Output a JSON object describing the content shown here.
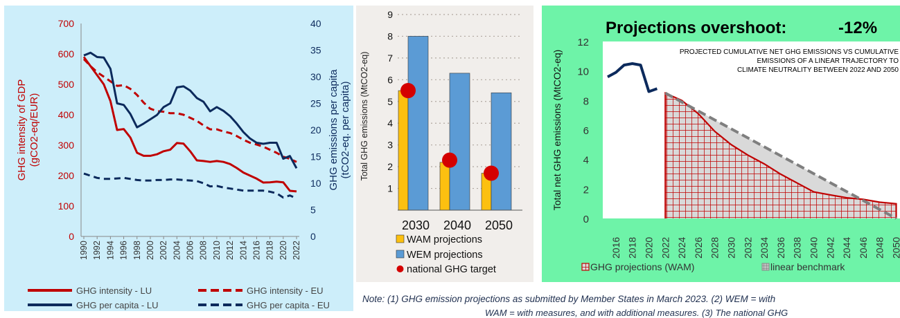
{
  "charts": {
    "intensity": {
      "left_axis_label_line1": "GHG intensity of GDP",
      "left_axis_label_line2": "(gCO2-eq/EUR)",
      "right_axis_label_line1": "GHG emissions per capita",
      "right_axis_label_line2": "(tCO2-eq. per capita)",
      "legend": [
        "GHG intensity - LU",
        "GHG intensity - EU",
        "GHG per capita - LU",
        "GHG per capita - EU"
      ]
    },
    "projections": {
      "ylabel": "Total GHG emissions (MtCO2-eq)",
      "legend": [
        "WAM projections",
        "WEM projections",
        "national GHG target"
      ]
    },
    "overshoot": {
      "title": "Projections overshoot:",
      "value": "-12%",
      "inset_line1": "PROJECTED CUMULATIVE NET GHG EMISSIONS VS CUMULATIVE",
      "inset_line2": "EMISSIONS OF A LINEAR TRAJECTORY TO",
      "inset_line3": "CLIMATE NEUTRALITY BETWEEN 2022 AND 2050",
      "ylabel": "Total net GHG emissions  (MtCO2-eq)",
      "legend": [
        "GHG projections (WAM)",
        "linear benchmark"
      ]
    }
  },
  "note": {
    "line1": "Note: (1) GHG emission projections as submitted by Member States in March 2023. (2) WEM = with",
    "line2": "WAM = with measures, and with additional measures. (3) The national GHG"
  },
  "colors": {
    "lu_red": "#c00000",
    "eu_navy": "#0c2a5c",
    "wam": "#fcc010",
    "wem": "#5b9bd5",
    "target": "#d40000",
    "panel1_bg": "#cdeefa",
    "panel2_bg": "#f1eeeb",
    "panel3_bg": "#6ef3a8"
  },
  "chart_data": [
    {
      "type": "line",
      "x": [
        1990,
        1991,
        1992,
        1993,
        1994,
        1995,
        1996,
        1997,
        1998,
        1999,
        2000,
        2001,
        2002,
        2003,
        2004,
        2005,
        2006,
        2007,
        2008,
        2009,
        2010,
        2011,
        2012,
        2013,
        2014,
        2015,
        2016,
        2017,
        2018,
        2019,
        2020,
        2021,
        2022
      ],
      "x_ticks": [
        "1990",
        "1992",
        "1994",
        "1996",
        "1998",
        "2000",
        "2002",
        "2004",
        "2006",
        "2008",
        "2010",
        "2012",
        "2014",
        "2016",
        "2018",
        "2020",
        "2022"
      ],
      "ylim": [
        0,
        700
      ],
      "y_ticks": [
        "0",
        "100",
        "200",
        "300",
        "400",
        "500",
        "600",
        "700"
      ],
      "y2lim": [
        0,
        40
      ],
      "y2_ticks": [
        "0",
        "5",
        "10",
        "15",
        "20",
        "25",
        "30",
        "35",
        "40"
      ],
      "series": [
        {
          "name": "GHG intensity - LU",
          "axis": "left",
          "style": "solid",
          "color": "#c00000",
          "values": [
            590,
            560,
            530,
            500,
            445,
            350,
            353,
            325,
            275,
            265,
            265,
            270,
            280,
            285,
            307,
            305,
            280,
            250,
            248,
            245,
            248,
            245,
            238,
            225,
            210,
            200,
            190,
            177,
            178,
            180,
            178,
            150,
            148
          ]
        },
        {
          "name": "GHG intensity - EU",
          "axis": "left",
          "style": "dashed",
          "color": "#c00000",
          "values": [
            583,
            560,
            540,
            525,
            510,
            495,
            497,
            485,
            465,
            440,
            420,
            412,
            410,
            405,
            405,
            400,
            390,
            380,
            365,
            352,
            352,
            345,
            340,
            330,
            318,
            308,
            302,
            295,
            285,
            275,
            262,
            255,
            245
          ]
        },
        {
          "name": "GHG per capita - LU",
          "axis": "right",
          "style": "solid",
          "color": "#0c2a5c",
          "values": [
            34.0,
            34.5,
            33.7,
            33.6,
            31.5,
            25.0,
            24.7,
            23.0,
            20.5,
            21.2,
            22.0,
            22.8,
            24.3,
            25.0,
            28.0,
            28.2,
            27.4,
            26.0,
            25.3,
            23.5,
            24.3,
            23.6,
            22.6,
            21.2,
            19.6,
            18.4,
            17.6,
            17.4,
            17.6,
            17.6,
            14.6,
            15.1,
            12.8
          ]
        },
        {
          "name": "GHG per capita - EU",
          "axis": "right",
          "style": "dashed",
          "color": "#0c2a5c",
          "values": [
            11.8,
            11.4,
            11.0,
            10.8,
            10.8,
            10.9,
            11.0,
            10.8,
            10.6,
            10.5,
            10.5,
            10.6,
            10.6,
            10.7,
            10.7,
            10.6,
            10.5,
            10.4,
            10.0,
            9.4,
            9.5,
            9.2,
            9.0,
            8.8,
            8.6,
            8.6,
            8.6,
            8.6,
            8.4,
            8.1,
            7.3,
            7.7,
            7.1
          ]
        }
      ]
    },
    {
      "type": "bar",
      "categories": [
        "2030",
        "2040",
        "2050"
      ],
      "ylim": [
        0,
        9
      ],
      "y_ticks": [
        "1",
        "2",
        "3",
        "4",
        "5",
        "6",
        "7",
        "8",
        "9"
      ],
      "series": [
        {
          "name": "WAM projections",
          "values": [
            5.5,
            2.2,
            1.7
          ]
        },
        {
          "name": "WEM projections",
          "values": [
            8.0,
            6.3,
            5.4
          ]
        },
        {
          "name": "national GHG target",
          "values": [
            5.5,
            2.3,
            1.7
          ]
        }
      ]
    },
    {
      "type": "area",
      "ylim": [
        0,
        12
      ],
      "y_ticks": [
        "0",
        "2",
        "4",
        "6",
        "8",
        "10",
        "12"
      ],
      "x_ticks": [
        "2016",
        "2018",
        "2020",
        "2022",
        "2024",
        "2026",
        "2028",
        "2030",
        "2032",
        "2034",
        "2036",
        "2038",
        "2040",
        "2042",
        "2044",
        "2046",
        "2048",
        "2050"
      ],
      "series": [
        {
          "name": "historical",
          "x": [
            2015,
            2016,
            2017,
            2018,
            2019,
            2020,
            2021
          ],
          "values": [
            9.6,
            9.9,
            10.4,
            10.5,
            10.4,
            8.6,
            8.8
          ]
        },
        {
          "name": "GHG projections (WAM)",
          "x": [
            2022,
            2024,
            2026,
            2028,
            2030,
            2032,
            2034,
            2036,
            2038,
            2040,
            2042,
            2044,
            2046,
            2048,
            2050
          ],
          "values": [
            8.5,
            8.0,
            7.1,
            5.9,
            5.0,
            4.3,
            3.7,
            3.0,
            2.4,
            1.8,
            1.6,
            1.4,
            1.3,
            1.1,
            1.0
          ]
        },
        {
          "name": "linear benchmark",
          "x": [
            2022,
            2050
          ],
          "values": [
            8.5,
            0.0
          ]
        }
      ]
    }
  ]
}
